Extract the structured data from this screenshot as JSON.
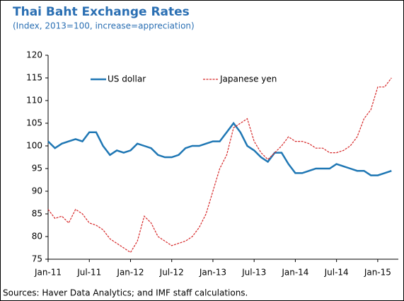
{
  "chart_data": {
    "type": "line",
    "title": "Thai Baht Exchange Rates",
    "subtitle": "(Index, 2013=100, increase=appreciation)",
    "source": "Sources: Haver Data Analytics; and IMF staff calculations.",
    "x": [
      "2011-01",
      "2011-02",
      "2011-03",
      "2011-04",
      "2011-05",
      "2011-06",
      "2011-07",
      "2011-08",
      "2011-09",
      "2011-10",
      "2011-11",
      "2011-12",
      "2012-01",
      "2012-02",
      "2012-03",
      "2012-04",
      "2012-05",
      "2012-06",
      "2012-07",
      "2012-08",
      "2012-09",
      "2012-10",
      "2012-11",
      "2012-12",
      "2013-01",
      "2013-02",
      "2013-03",
      "2013-04",
      "2013-05",
      "2013-06",
      "2013-07",
      "2013-08",
      "2013-09",
      "2013-10",
      "2013-11",
      "2013-12",
      "2014-01",
      "2014-02",
      "2014-03",
      "2014-04",
      "2014-05",
      "2014-06",
      "2014-07",
      "2014-08",
      "2014-09",
      "2014-10",
      "2014-11",
      "2014-12",
      "2015-01",
      "2015-02",
      "2015-03"
    ],
    "series": [
      {
        "name": "US dollar",
        "color": "#1f77b4",
        "dash": false,
        "values": [
          101,
          99.5,
          100.5,
          101,
          101.5,
          101,
          103,
          103,
          100,
          98,
          99,
          98.5,
          99,
          100.5,
          100,
          99.5,
          98,
          97.5,
          97.5,
          98,
          99.5,
          100,
          100,
          100.5,
          101,
          101,
          103,
          105,
          103,
          100,
          99,
          97.5,
          96.5,
          98.5,
          98.5,
          96,
          94,
          94,
          94.5,
          95,
          95,
          95,
          96,
          95.5,
          95,
          94.5,
          94.5,
          93.5,
          93.5,
          94,
          94.5
        ]
      },
      {
        "name": "Japanese yen",
        "color": "#d62728",
        "dash": true,
        "values": [
          86,
          84,
          84.5,
          83,
          86,
          85,
          83,
          82.5,
          81.5,
          79.5,
          78.5,
          77.5,
          76.5,
          79,
          84.5,
          83,
          80,
          79,
          78,
          78.5,
          79,
          80,
          82,
          85,
          90,
          95,
          98,
          104,
          105,
          106,
          101,
          98.5,
          97,
          98.5,
          100,
          102,
          101,
          101,
          100.5,
          99.5,
          99.5,
          98.5,
          98.5,
          99,
          100,
          102,
          106,
          108,
          113,
          113,
          115
        ]
      }
    ],
    "xlim": [
      "2011-01",
      "2015-04"
    ],
    "xticks": [
      {
        "value": "2011-01",
        "label": "Jan-11"
      },
      {
        "value": "2011-07",
        "label": "Jul-11"
      },
      {
        "value": "2012-01",
        "label": "Jan-12"
      },
      {
        "value": "2012-07",
        "label": "Jul-12"
      },
      {
        "value": "2013-01",
        "label": "Jan-13"
      },
      {
        "value": "2013-07",
        "label": "Jul-13"
      },
      {
        "value": "2014-01",
        "label": "Jan-14"
      },
      {
        "value": "2014-07",
        "label": "Jul-14"
      },
      {
        "value": "2015-01",
        "label": "Jan-15"
      }
    ],
    "ylim": [
      75,
      120
    ],
    "yticks": [
      75,
      80,
      85,
      90,
      95,
      100,
      105,
      110,
      115,
      120
    ]
  }
}
